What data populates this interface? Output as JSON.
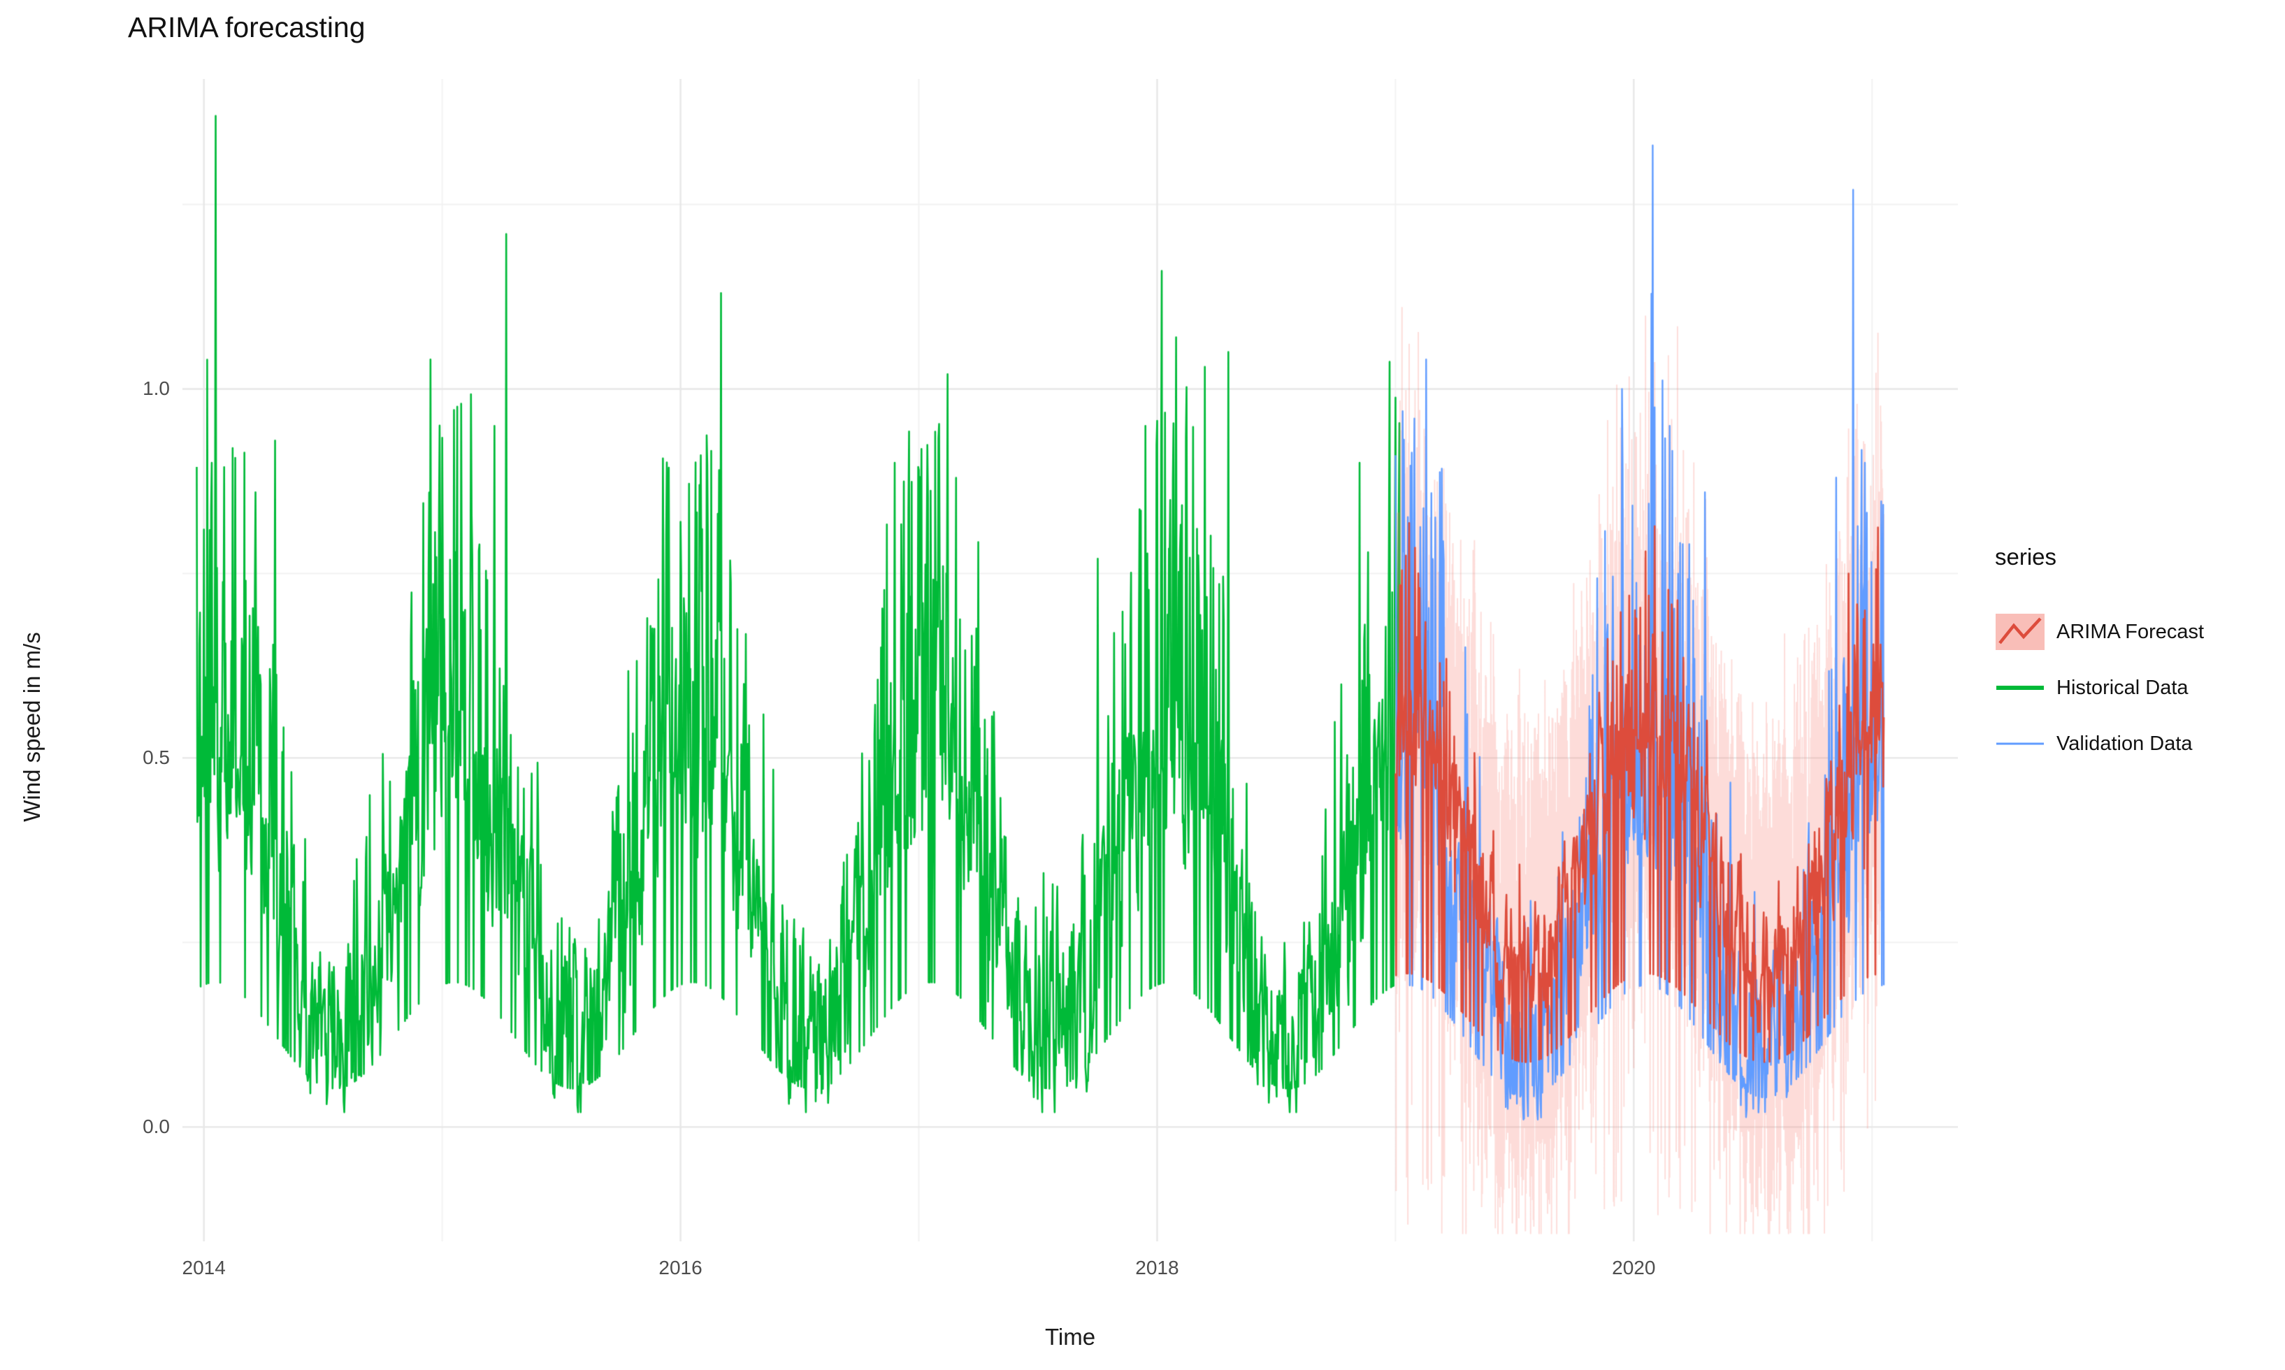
{
  "chart_data": {
    "type": "line",
    "title": "ARIMA forecasting",
    "xlabel": "Time",
    "ylabel": "Wind speed in m/s",
    "x_ticks": [
      2014,
      2016,
      2018,
      2020
    ],
    "x_tick_labels": [
      "2014",
      "2016",
      "2018",
      "2020"
    ],
    "y_ticks": [
      0.0,
      0.5,
      1.0
    ],
    "y_tick_labels": [
      "0.0",
      "0.5",
      "1.0"
    ],
    "xlim": [
      2013.91,
      2021.36
    ],
    "ylim": [
      -0.155,
      1.42
    ],
    "grid": {
      "major_x": [
        2014,
        2016,
        2018,
        2020
      ],
      "minor_x": [
        2015,
        2017,
        2019,
        2021
      ],
      "major_y": [
        0.0,
        0.5,
        1.0
      ],
      "minor_y": [
        0.25,
        0.75,
        1.25
      ]
    },
    "style": {
      "background": "#ffffff",
      "grid_major": "#e7e7e7",
      "grid_minor": "#f2f2f2",
      "tick_label_color": "#4d4d4d",
      "axis_title_color": "#1a1a1a",
      "title_color": "#111111",
      "legend_text_color": "#111111"
    },
    "legend": {
      "title": "series",
      "position": "right",
      "items": [
        {
          "label": "ARIMA Forecast",
          "color": "#dd4c3c",
          "key_fill": "#f9beb8",
          "type": "line_ribbon"
        },
        {
          "label": "Historical Data",
          "color": "#00ba38",
          "type": "line"
        },
        {
          "label": "Validation Data",
          "color": "#619cff",
          "type": "line"
        }
      ]
    },
    "series": [
      {
        "role": "historical",
        "name": "Historical Data",
        "color": "#00ba38",
        "t_start": 2013.97,
        "t_end": 2019.02,
        "points_per_year": 365,
        "base": 0.13,
        "amp": 0.36,
        "phase": 2014.05,
        "ar": 0.45,
        "noise": 0.1,
        "spike_prob": 0.55,
        "spike_max": 0.5,
        "floor": 0.02,
        "seed": 42,
        "spikes": [
          [
            2014.05,
            1.37
          ],
          [
            2014.12,
            0.92
          ],
          [
            2014.3,
            0.93
          ],
          [
            2014.95,
            1.04
          ],
          [
            2015.08,
            0.98
          ],
          [
            2015.22,
            0.95
          ],
          [
            2015.27,
            1.21
          ],
          [
            2016.0,
            0.82
          ],
          [
            2016.08,
            0.87
          ],
          [
            2016.17,
            1.13
          ],
          [
            2016.9,
            0.9
          ],
          [
            2017.0,
            0.89
          ],
          [
            2017.12,
            1.02
          ],
          [
            2017.75,
            0.77
          ],
          [
            2017.95,
            0.95
          ],
          [
            2018.02,
            1.16
          ],
          [
            2018.08,
            1.07
          ],
          [
            2018.2,
            1.03
          ],
          [
            2018.3,
            1.05
          ],
          [
            2018.85,
            0.9
          ]
        ]
      },
      {
        "role": "validation",
        "name": "Validation Data",
        "color": "#619cff",
        "t_start": 2019.0,
        "t_end": 2021.05,
        "points_per_year": 365,
        "base": 0.1,
        "amp": 0.38,
        "phase": 2020.05,
        "ar": 0.45,
        "noise": 0.09,
        "spike_prob": 0.5,
        "spike_max": 0.55,
        "floor": 0.01,
        "seed": 7,
        "spikes": [
          [
            2019.03,
            0.97
          ],
          [
            2019.08,
            0.96
          ],
          [
            2019.13,
            1.04
          ],
          [
            2019.95,
            1.0
          ],
          [
            2020.08,
            1.33
          ],
          [
            2020.15,
            0.95
          ],
          [
            2020.3,
            0.86
          ],
          [
            2020.85,
            0.88
          ],
          [
            2020.92,
            1.27
          ],
          [
            2020.97,
            0.9
          ]
        ]
      },
      {
        "role": "forecast",
        "name": "ARIMA Forecast",
        "color": "#dd4c3c",
        "ribbon_color": "#f8766d",
        "ribbon_alpha": 0.26,
        "t_start": 2019.0,
        "t_end": 2021.05,
        "points_per_year": 365,
        "base": 0.22,
        "amp": 0.3,
        "phase": 2020.05,
        "ar": 0.6,
        "noise": 0.07,
        "spike_prob": 0.4,
        "spike_max": 0.25,
        "floor": 0.03,
        "seed": 99,
        "ribbon_base": 0.17,
        "ribbon_noise": 0.13,
        "hair_prob": 0.25,
        "hair_max": 0.11,
        "spikes": [
          [
            2019.98,
            0.72
          ],
          [
            2020.05,
            0.78
          ],
          [
            2020.9,
            0.75
          ],
          [
            2020.97,
            0.7
          ]
        ]
      }
    ]
  }
}
